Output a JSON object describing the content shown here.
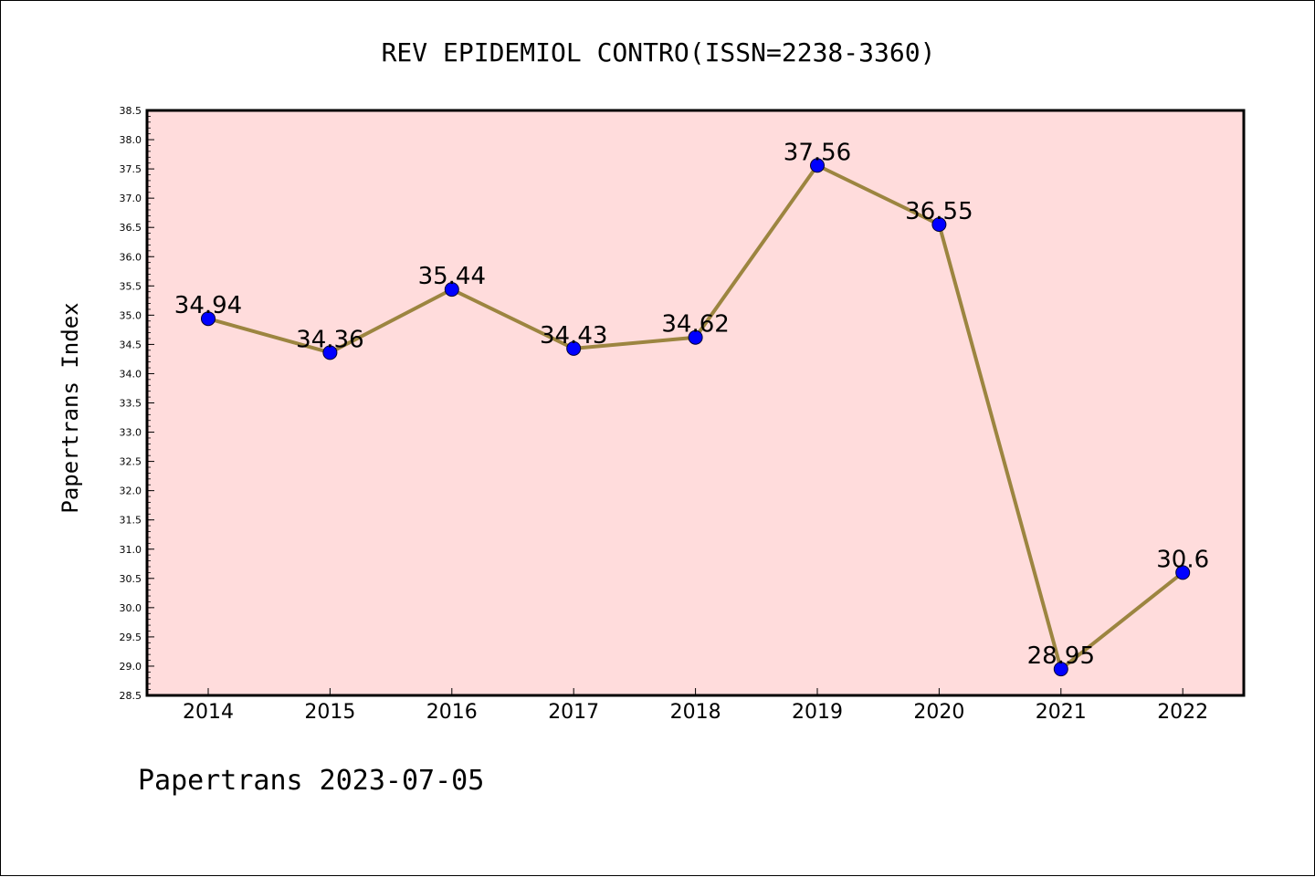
{
  "chart_data": {
    "type": "line",
    "title": "REV EPIDEMIOL CONTRO(ISSN=2238-3360)",
    "ylabel": "Papertrans Index",
    "xlabel": "",
    "categories": [
      "2014",
      "2015",
      "2016",
      "2017",
      "2018",
      "2019",
      "2020",
      "2021",
      "2022"
    ],
    "values": [
      34.94,
      34.36,
      35.44,
      34.43,
      34.62,
      37.56,
      36.55,
      28.95,
      30.6
    ],
    "data_labels": [
      "34.94",
      "34.36",
      "35.44",
      "34.43",
      "34.62",
      "37.56",
      "36.55",
      "28.95",
      "30.6"
    ],
    "ylim": [
      28.5,
      38.5
    ],
    "yticks": [
      "28.5",
      "29.0",
      "29.5",
      "30.0",
      "30.5",
      "31.0",
      "31.5",
      "32.0",
      "32.5",
      "33.0",
      "33.5",
      "34.0",
      "34.5",
      "35.0",
      "35.5",
      "36.0",
      "36.5",
      "37.0",
      "37.5",
      "38.0",
      "38.5"
    ],
    "grid": false,
    "colors": {
      "plot_background": "#ffdcdc",
      "line": "#9c8540",
      "marker": "#0000ff"
    }
  },
  "footer": "Papertrans 2023-07-05"
}
